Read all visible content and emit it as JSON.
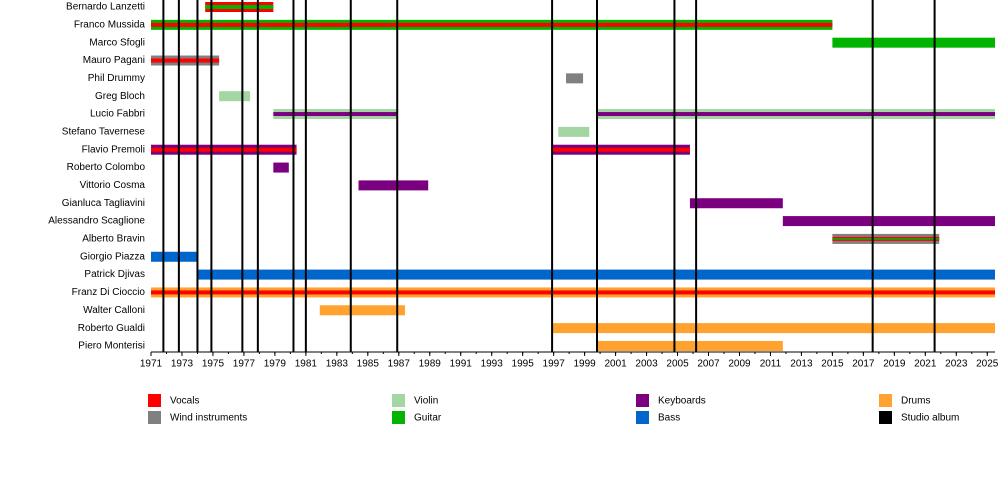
{
  "chart_data": {
    "type": "timeline",
    "xlim": [
      1971,
      2025.5
    ],
    "xticks": [
      1971,
      1973,
      1975,
      1977,
      1979,
      1981,
      1983,
      1985,
      1987,
      1989,
      1991,
      1993,
      1995,
      1997,
      1999,
      2001,
      2003,
      2005,
      2007,
      2009,
      2011,
      2013,
      2015,
      2017,
      2019,
      2021,
      2023,
      2025
    ],
    "roles": [
      {
        "name": "Vocals",
        "color": "#ff0000"
      },
      {
        "name": "Wind instruments",
        "color": "#808080"
      },
      {
        "name": "Violin",
        "color": "#a3d6a3"
      },
      {
        "name": "Guitar",
        "color": "#00b400"
      },
      {
        "name": "Keyboards",
        "color": "#7b0080"
      },
      {
        "name": "Bass",
        "color": "#0066cc"
      },
      {
        "name": "Drums",
        "color": "#ffa230"
      }
    ],
    "albums": {
      "name": "Studio album",
      "color": "#000000",
      "years": [
        1971.8,
        1972.8,
        1974,
        1974.9,
        1976.9,
        1977.9,
        1980.2,
        1981,
        1983.9,
        1986.9,
        1996.9,
        1999.8,
        2004.8,
        2006.2,
        2017.6,
        2021.6
      ]
    },
    "members": [
      {
        "name": "Bernardo Lanzetti",
        "bars": [
          {
            "start": 1974.5,
            "end": 1978.9,
            "roles": [
              "Vocals",
              "Guitar"
            ]
          }
        ]
      },
      {
        "name": "Franco Mussida",
        "bars": [
          {
            "start": 1971,
            "end": 2015,
            "roles": [
              "Guitar",
              "Vocals"
            ]
          }
        ]
      },
      {
        "name": "Marco Sfogli",
        "bars": [
          {
            "start": 2015,
            "end": 2025.5,
            "roles": [
              "Guitar"
            ]
          }
        ]
      },
      {
        "name": "Mauro Pagani",
        "bars": [
          {
            "start": 1971,
            "end": 1975.4,
            "roles": [
              "Wind instruments",
              "Vocals"
            ]
          }
        ]
      },
      {
        "name": "Phil Drummy",
        "bars": [
          {
            "start": 1997.8,
            "end": 1998.9,
            "roles": [
              "Wind instruments"
            ]
          }
        ]
      },
      {
        "name": "Greg Bloch",
        "bars": [
          {
            "start": 1975.4,
            "end": 1977.4,
            "roles": [
              "Violin"
            ]
          }
        ]
      },
      {
        "name": "Lucio Fabbri",
        "bars": [
          {
            "start": 1978.9,
            "end": 1986.9,
            "roles": [
              "Violin",
              "Keyboards"
            ]
          },
          {
            "start": 1999.8,
            "end": 2025.5,
            "roles": [
              "Violin",
              "Keyboards"
            ]
          }
        ]
      },
      {
        "name": "Stefano Tavernese",
        "bars": [
          {
            "start": 1997.3,
            "end": 1999.3,
            "roles": [
              "Violin"
            ]
          }
        ]
      },
      {
        "name": "Flavio Premoli",
        "bars": [
          {
            "start": 1971,
            "end": 1980.4,
            "roles": [
              "Keyboards",
              "Vocals"
            ]
          },
          {
            "start": 1996.9,
            "end": 2005.8,
            "roles": [
              "Keyboards",
              "Vocals"
            ]
          }
        ]
      },
      {
        "name": "Roberto Colombo",
        "bars": [
          {
            "start": 1978.9,
            "end": 1979.9,
            "roles": [
              "Keyboards"
            ]
          }
        ]
      },
      {
        "name": "Vittorio Cosma",
        "bars": [
          {
            "start": 1984.4,
            "end": 1988.9,
            "roles": [
              "Keyboards"
            ]
          }
        ]
      },
      {
        "name": "Gianluca Tagliavini",
        "bars": [
          {
            "start": 2005.8,
            "end": 2011.8,
            "roles": [
              "Keyboards"
            ]
          }
        ]
      },
      {
        "name": "Alessandro Scaglione",
        "bars": [
          {
            "start": 2011.8,
            "end": 2025.5,
            "roles": [
              "Keyboards"
            ]
          }
        ]
      },
      {
        "name": "Alberto Bravin",
        "bars": [
          {
            "start": 2015,
            "end": 2021.9,
            "roles": [
              "Wind instruments",
              "Vocals",
              "Guitar"
            ]
          }
        ]
      },
      {
        "name": "Giorgio Piazza",
        "bars": [
          {
            "start": 1971,
            "end": 1974,
            "roles": [
              "Bass"
            ]
          }
        ]
      },
      {
        "name": "Patrick Djivas",
        "bars": [
          {
            "start": 1974,
            "end": 2025.5,
            "roles": [
              "Bass"
            ]
          }
        ]
      },
      {
        "name": "Franz Di Cioccio",
        "bars": [
          {
            "start": 1971,
            "end": 2025.5,
            "roles": [
              "Drums",
              "Vocals"
            ]
          }
        ]
      },
      {
        "name": "Walter Calloni",
        "bars": [
          {
            "start": 1981.9,
            "end": 1987.4,
            "roles": [
              "Drums"
            ]
          }
        ]
      },
      {
        "name": "Roberto Gualdi",
        "bars": [
          {
            "start": 1996.9,
            "end": 2025.5,
            "roles": [
              "Drums"
            ]
          }
        ]
      },
      {
        "name": "Piero Monterisi",
        "bars": [
          {
            "start": 1999.8,
            "end": 2011.8,
            "roles": [
              "Drums"
            ]
          }
        ]
      }
    ]
  }
}
